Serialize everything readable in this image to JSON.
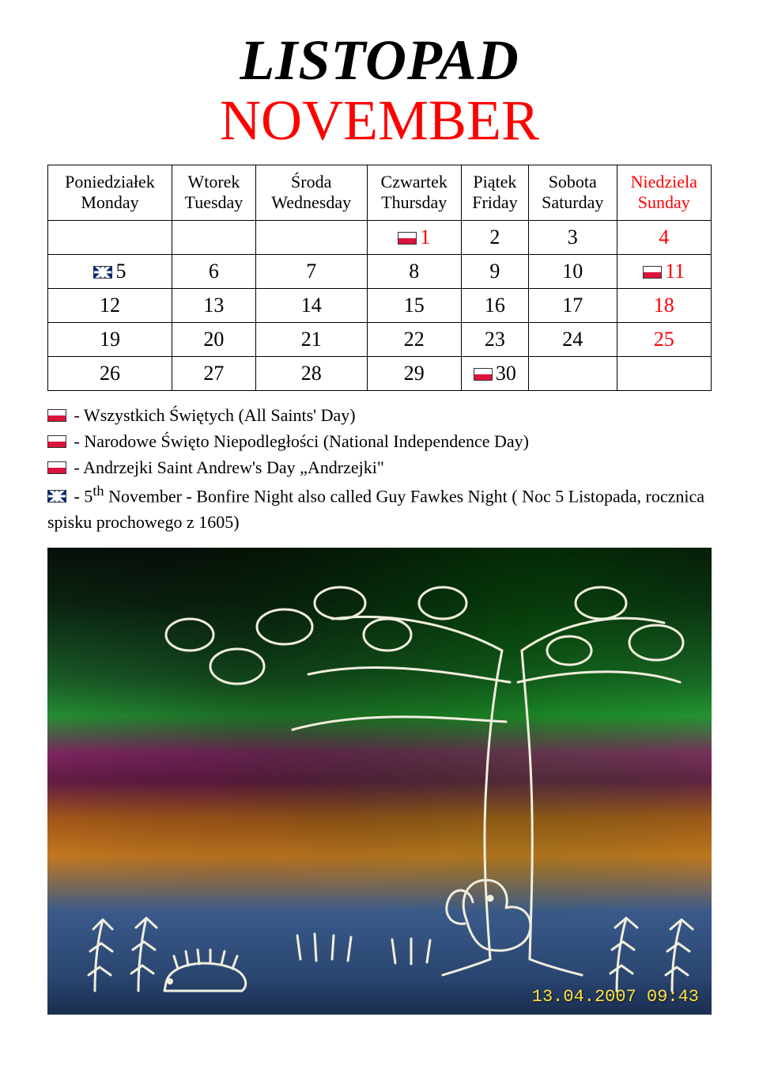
{
  "title": {
    "line1": "LISTOPAD",
    "line2": "NOVEMBER"
  },
  "colors": {
    "text": "#000000",
    "accent_red": "#ff0000",
    "holiday_red": "#ff0000",
    "border": "#000000",
    "timestamp": "#ffe040"
  },
  "fonts": {
    "title_size_pt": 54,
    "header_size_pt": 17,
    "cell_size_pt": 20,
    "notes_size_pt": 17,
    "family": "Comic Sans MS"
  },
  "calendar": {
    "type": "table",
    "columns": [
      {
        "pl": "Poniedziałek",
        "en": "Monday",
        "red": false
      },
      {
        "pl": "Wtorek",
        "en": "Tuesday",
        "red": false
      },
      {
        "pl": "Środa",
        "en": "Wednesday",
        "red": false
      },
      {
        "pl": "Czwartek",
        "en": "Thursday",
        "red": false
      },
      {
        "pl": "Piątek",
        "en": "Friday",
        "red": false
      },
      {
        "pl": "Sobota",
        "en": "Saturday",
        "red": false
      },
      {
        "pl": "Niedziela",
        "en": "Sunday",
        "red": true
      }
    ],
    "rows": [
      [
        {
          "v": ""
        },
        {
          "v": ""
        },
        {
          "v": ""
        },
        {
          "v": "1",
          "red": true,
          "flag": "pl"
        },
        {
          "v": "2"
        },
        {
          "v": "3"
        },
        {
          "v": "4",
          "red": true
        }
      ],
      [
        {
          "v": "5",
          "flag": "uk"
        },
        {
          "v": "6"
        },
        {
          "v": "7"
        },
        {
          "v": "8"
        },
        {
          "v": "9"
        },
        {
          "v": "10"
        },
        {
          "v": "11",
          "red": true,
          "flag": "pl"
        }
      ],
      [
        {
          "v": "12"
        },
        {
          "v": "13"
        },
        {
          "v": "14"
        },
        {
          "v": "15"
        },
        {
          "v": "16"
        },
        {
          "v": "17"
        },
        {
          "v": "18",
          "red": true
        }
      ],
      [
        {
          "v": "19"
        },
        {
          "v": "20"
        },
        {
          "v": "21"
        },
        {
          "v": "22"
        },
        {
          "v": "23"
        },
        {
          "v": "24"
        },
        {
          "v": "25",
          "red": true
        }
      ],
      [
        {
          "v": "26"
        },
        {
          "v": "27"
        },
        {
          "v": "28"
        },
        {
          "v": "29"
        },
        {
          "v": "30",
          "flag": "pl"
        },
        {
          "v": ""
        },
        {
          "v": ""
        }
      ]
    ]
  },
  "notes": [
    {
      "flag": "pl",
      "text": " - Wszystkich Świętych (All Saints' Day)"
    },
    {
      "flag": "pl",
      "text": " - Narodowe Święto Niepodległości (National Independence Day)"
    },
    {
      "flag": "pl",
      "text": " - Andrzejki Saint Andrew's Day „Andrzejki\""
    },
    {
      "flag": "uk",
      "text_pre": " - 5",
      "sup": "th",
      "text_post": " November - Bonfire Night also called Guy Fawkes Night ( Noc 5 Listopada, rocznica spisku prochowego z 1605)"
    }
  ],
  "artwork": {
    "type": "painting",
    "description": "child artwork: stylized tree with white outline, squirrel at base, hedgehog lower-left, ferns/grass; dark green sky, magenta/orange mid, blue ground",
    "background_gradient": [
      "#08110a",
      "#0d2a14",
      "#1e6a2e",
      "#2aa33a",
      "#8a2a6a",
      "#6a1e4a",
      "#a85a1a",
      "#c2781f",
      "#3a5a8a",
      "#2a4570",
      "#1a2e50"
    ],
    "outline_color": "#f0eedd",
    "stroke_width": 3,
    "timestamp": "13.04.2007 09:43"
  }
}
